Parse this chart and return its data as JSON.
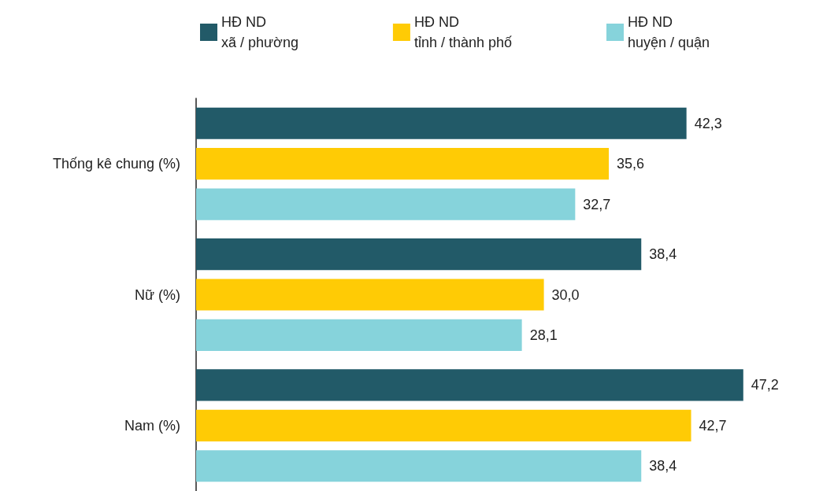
{
  "chart_data": {
    "type": "bar",
    "orientation": "horizontal",
    "legend": "top",
    "categories": [
      "Thống kê chung (%)",
      "Nữ (%)",
      "Nam (%)"
    ],
    "series": [
      {
        "name": "HĐ ND\nxã / phường",
        "color": "#225a68",
        "values": [
          42.3,
          38.4,
          47.2
        ],
        "value_labels": [
          "42,3",
          "38,4",
          "47,2"
        ]
      },
      {
        "name": "HĐ ND\ntỉnh / thành phố",
        "color": "#ffcb05",
        "values": [
          35.6,
          30.0,
          42.7
        ],
        "value_labels": [
          "35,6",
          "30,0",
          "42,7"
        ]
      },
      {
        "name": "HĐ ND\nhuyện / quận",
        "color": "#86d3db",
        "values": [
          32.7,
          28.1,
          38.4
        ],
        "value_labels": [
          "32,7",
          "28,1",
          "38,4"
        ]
      }
    ]
  }
}
